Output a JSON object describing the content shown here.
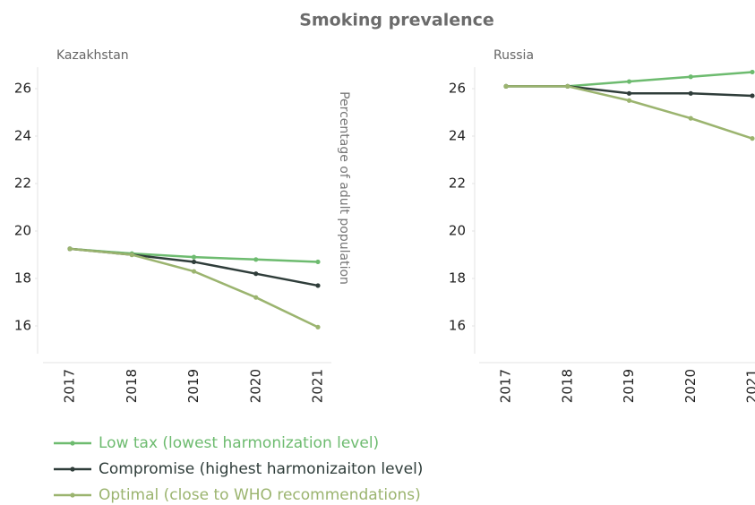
{
  "title": "Smoking prevalence",
  "y_label": "Percentage of adult population",
  "chart_data": [
    {
      "type": "line",
      "subtitle": "Kazakhstan",
      "categories": [
        "2017",
        "2018",
        "2019",
        "2020",
        "2021"
      ],
      "ylim": [
        15,
        27
      ],
      "yticks": [
        16,
        18,
        20,
        22,
        24,
        26
      ],
      "series": [
        {
          "name": "Low tax (lowest harmonization level)",
          "color": "#6dbb6f",
          "values": [
            19.25,
            19.05,
            18.9,
            18.8,
            18.7
          ]
        },
        {
          "name": "Compromise (highest harmonizaiton level)",
          "color": "#2f3d3a",
          "values": [
            19.25,
            19.0,
            18.7,
            18.2,
            17.7
          ]
        },
        {
          "name": "Optimal (close to WHO recommendations)",
          "color": "#9bb46f",
          "values": [
            19.25,
            19.0,
            18.3,
            17.2,
            15.95
          ]
        }
      ]
    },
    {
      "type": "line",
      "subtitle": "Russia",
      "categories": [
        "2017",
        "2018",
        "2019",
        "2020",
        "2021"
      ],
      "ylim": [
        15,
        27
      ],
      "yticks": [
        16,
        18,
        20,
        22,
        24,
        26
      ],
      "series": [
        {
          "name": "Low tax (lowest harmonization level)",
          "color": "#6dbb6f",
          "values": [
            26.1,
            26.1,
            26.3,
            26.5,
            26.7
          ]
        },
        {
          "name": "Compromise (highest harmonizaiton level)",
          "color": "#2f3d3a",
          "values": [
            26.1,
            26.1,
            25.8,
            25.8,
            25.7
          ]
        },
        {
          "name": "Optimal (close to WHO recommendations)",
          "color": "#9bb46f",
          "values": [
            26.1,
            26.1,
            25.5,
            24.75,
            23.9
          ]
        }
      ]
    }
  ]
}
